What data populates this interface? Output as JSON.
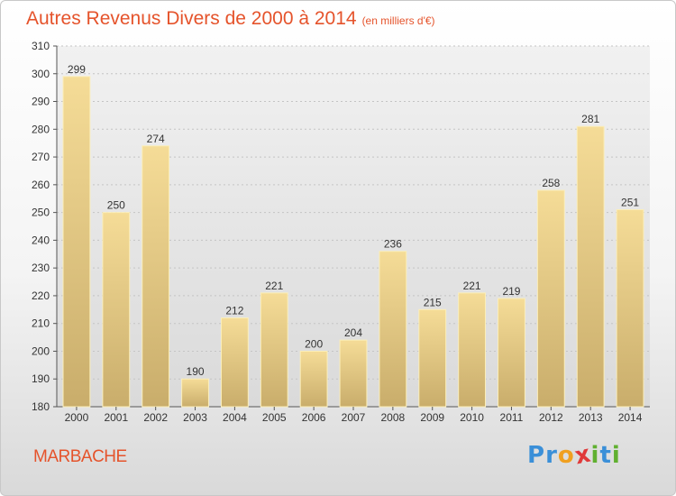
{
  "header": {
    "title": "Autres Revenus Divers de 2000 à 2014",
    "subtitle": "(en milliers d'€)"
  },
  "footer": {
    "commune": "MARBACHE",
    "logo_letters": [
      "P",
      "r",
      "o",
      "x",
      "i",
      "t",
      "i"
    ],
    "logo_colors": [
      "#3a8fd8",
      "#3a8fd8",
      "#f0a020",
      "#e03a3a",
      "#60b030",
      "#3a8fd8",
      "#60b030"
    ]
  },
  "chart_data": {
    "type": "bar",
    "categories": [
      "2000",
      "2001",
      "2002",
      "2003",
      "2004",
      "2005",
      "2006",
      "2007",
      "2008",
      "2009",
      "2010",
      "2011",
      "2012",
      "2013",
      "2014"
    ],
    "values": [
      299,
      250,
      274,
      190,
      212,
      221,
      200,
      204,
      236,
      215,
      221,
      219,
      258,
      281,
      251
    ],
    "ylim": [
      180,
      310
    ],
    "yticks": [
      180,
      190,
      200,
      210,
      220,
      230,
      240,
      250,
      260,
      270,
      280,
      290,
      300,
      310
    ],
    "grid": true,
    "bar_color_top": "#f5dc97",
    "bar_color_bottom": "#c9ad6b",
    "title": "Autres Revenus Divers de 2000 à 2014",
    "xlabel": "",
    "ylabel": ""
  }
}
